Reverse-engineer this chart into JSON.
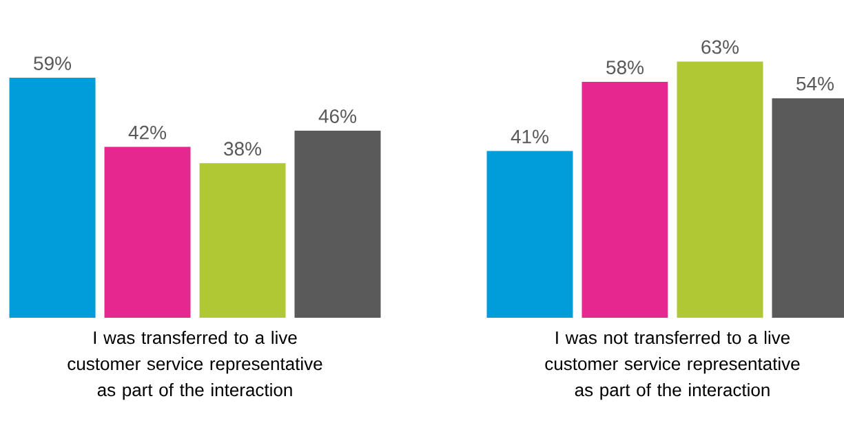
{
  "chart_data": {
    "type": "bar",
    "categories": [
      "I was transferred to a live customer service representative as part of the interaction",
      "I was not transferred to a live customer service representative as part of the interaction"
    ],
    "series": [
      {
        "color": "#009ddb",
        "values": [
          59,
          41
        ],
        "value_labels": [
          "59%",
          "41%"
        ]
      },
      {
        "color": "#e6278f",
        "values": [
          42,
          58
        ],
        "value_labels": [
          "42%",
          "58%"
        ]
      },
      {
        "color": "#b0c833",
        "values": [
          38,
          63
        ],
        "value_labels": [
          "38%",
          "63%"
        ]
      },
      {
        "color": "#5a5a5a",
        "values": [
          46,
          54
        ],
        "value_labels": [
          "46%",
          "54%"
        ]
      }
    ]
  }
}
